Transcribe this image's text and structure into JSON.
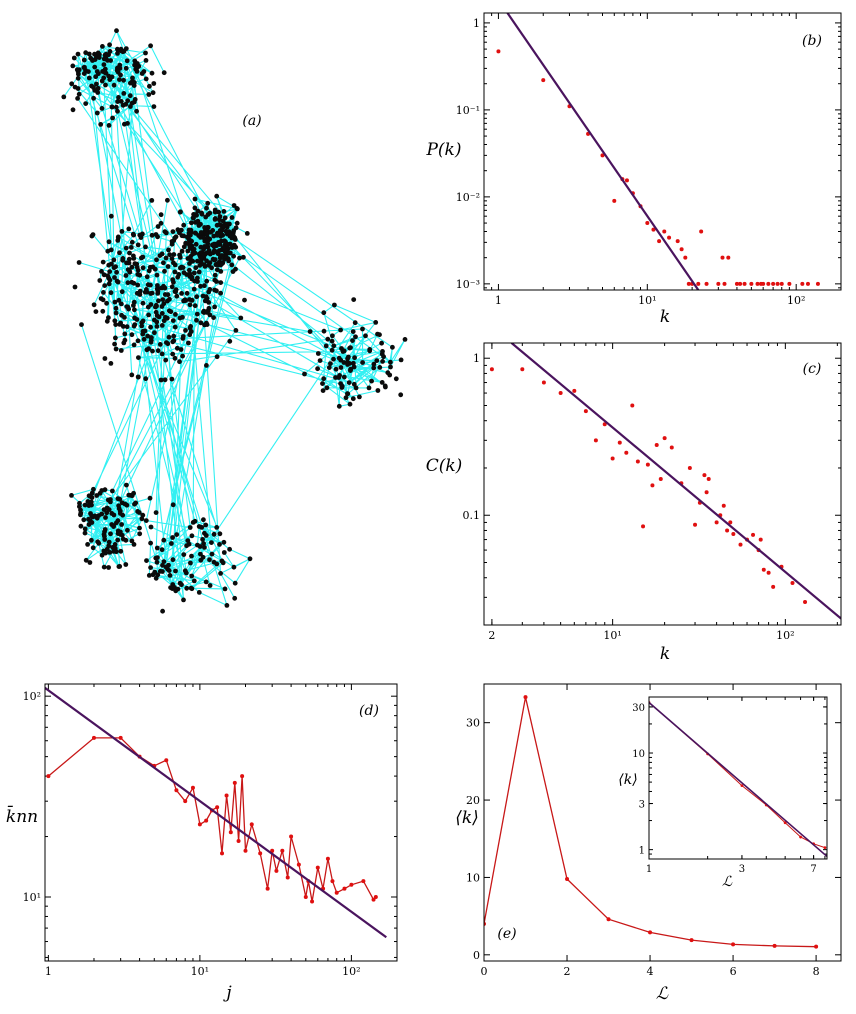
{
  "network_panel": {
    "label": "(a)",
    "edge_color": "#33f0f2",
    "node_color": "#0b0b0b",
    "modules": [
      {
        "nodes": 130
      },
      {
        "nodes": 320
      },
      {
        "nodes": 90
      },
      {
        "nodes": 110
      },
      {
        "nodes": 90
      },
      {
        "nodes": 200
      }
    ]
  },
  "colors": {
    "data": "#e01010",
    "fit_line": "#4a145e",
    "connector": "#c81818"
  },
  "chart_data": [
    {
      "id": "b",
      "label": "(b)",
      "type": "scatter",
      "xlabel": "k",
      "ylabel": "P(k)",
      "xscale": "log",
      "yscale": "log",
      "xlim": [
        0.8,
        200
      ],
      "ylim": [
        0.00085,
        1.3
      ],
      "xticks": [
        1,
        10,
        100
      ],
      "xticklabels": [
        "1",
        "10¹",
        "10²"
      ],
      "yticks": [
        1,
        0.1,
        0.01,
        0.001
      ],
      "yticklabels": [
        "1",
        "10⁻¹",
        "10⁻²",
        "10⁻³"
      ],
      "grid": false,
      "series": [
        {
          "style": "points",
          "x": [
            1,
            2,
            3,
            4,
            5,
            6,
            6.8,
            7.3,
            8,
            9,
            10,
            11,
            12,
            13,
            14,
            16,
            17,
            18,
            19,
            20,
            22,
            23,
            25,
            30,
            32,
            33,
            35,
            40,
            42,
            45,
            50,
            55,
            58,
            60,
            65,
            70,
            75,
            80,
            90,
            110,
            120,
            140
          ],
          "y": [
            0.47,
            0.22,
            0.11,
            0.053,
            0.03,
            0.009,
            0.016,
            0.0155,
            0.011,
            0.0078,
            0.005,
            0.0042,
            0.0031,
            0.004,
            0.0034,
            0.0031,
            0.0025,
            0.002,
            0.001,
            0.001,
            0.001,
            0.004,
            0.001,
            0.001,
            0.002,
            0.001,
            0.002,
            0.001,
            0.001,
            0.001,
            0.001,
            0.001,
            0.001,
            0.001,
            0.001,
            0.001,
            0.001,
            0.001,
            0.001,
            0.001,
            0.001,
            0.001
          ]
        },
        {
          "style": "line",
          "x": [
            1.15,
            22
          ],
          "y": [
            1.3,
            0.00085
          ]
        }
      ]
    },
    {
      "id": "c",
      "label": "(c)",
      "type": "scatter",
      "xlabel": "k",
      "ylabel": "C(k)",
      "xscale": "log",
      "yscale": "log",
      "xlim": [
        1.8,
        210
      ],
      "ylim": [
        0.02,
        1.25
      ],
      "xticks": [
        2,
        10,
        100
      ],
      "xticklabels": [
        "2",
        "10¹",
        "10²"
      ],
      "yticks": [
        1,
        0.1
      ],
      "yticklabels": [
        "1",
        "0.1"
      ],
      "grid": false,
      "series": [
        {
          "style": "points",
          "x": [
            2,
            3,
            4,
            5,
            6,
            7,
            8,
            9,
            10,
            11,
            12,
            13,
            14,
            15,
            16,
            17,
            18,
            19,
            20,
            22,
            25,
            28,
            30,
            32,
            34,
            35,
            36,
            40,
            42,
            44,
            46,
            48,
            50,
            55,
            60,
            65,
            70,
            72,
            75,
            80,
            85,
            95,
            110,
            130
          ],
          "y": [
            0.85,
            0.85,
            0.7,
            0.6,
            0.62,
            0.46,
            0.3,
            0.38,
            0.23,
            0.29,
            0.25,
            0.5,
            0.22,
            0.085,
            0.21,
            0.155,
            0.28,
            0.17,
            0.31,
            0.27,
            0.16,
            0.2,
            0.087,
            0.12,
            0.18,
            0.14,
            0.17,
            0.09,
            0.1,
            0.115,
            0.08,
            0.09,
            0.076,
            0.065,
            0.07,
            0.075,
            0.06,
            0.07,
            0.045,
            0.043,
            0.035,
            0.047,
            0.037,
            0.028
          ]
        },
        {
          "style": "line",
          "x": [
            2.6,
            210
          ],
          "y": [
            1.25,
            0.022
          ]
        }
      ]
    },
    {
      "id": "d",
      "label": "(d)",
      "type": "line",
      "xlabel": "j",
      "ylabel": "k̄nn",
      "xscale": "log",
      "yscale": "log",
      "xlim": [
        0.95,
        200
      ],
      "ylim": [
        4.8,
        115
      ],
      "xticks": [
        1,
        10,
        100
      ],
      "xticklabels": [
        "1",
        "10¹",
        "10²"
      ],
      "yticks": [
        10,
        100
      ],
      "yticklabels": [
        "10¹",
        "10²"
      ],
      "grid": false,
      "series": [
        {
          "style": "connected",
          "x": [
            1,
            2,
            3,
            4,
            5,
            6,
            7,
            8,
            9,
            10,
            11,
            12,
            13,
            14,
            15,
            16,
            17,
            18,
            19,
            20,
            22,
            25,
            28,
            30,
            32,
            35,
            38,
            40,
            45,
            50,
            52,
            55,
            60,
            65,
            70,
            75,
            80,
            90,
            100,
            120,
            140,
            145
          ],
          "y": [
            40,
            62,
            62,
            50,
            45,
            48,
            34,
            30,
            35,
            23,
            24,
            27,
            28,
            16.5,
            32,
            21,
            37,
            19,
            40,
            17,
            23,
            16.5,
            11,
            17,
            13.5,
            17,
            12.5,
            20,
            14.5,
            10,
            12,
            9.5,
            14,
            11,
            15.5,
            12,
            10.5,
            11,
            11.5,
            12,
            9.7,
            10
          ]
        },
        {
          "style": "line",
          "x": [
            0.95,
            170
          ],
          "y": [
            110,
            6.3
          ]
        }
      ]
    },
    {
      "id": "e",
      "label": "(e)",
      "type": "line",
      "xlabel": "ℒ",
      "ylabel": "⟨k⟩",
      "xscale": "linear",
      "yscale": "linear",
      "xlim": [
        0,
        8.6
      ],
      "ylim": [
        -0.8,
        35
      ],
      "xticks": [
        0,
        2,
        4,
        6,
        8
      ],
      "xticklabels": [
        "0",
        "2",
        "4",
        "6",
        "8"
      ],
      "yticks": [
        0,
        10,
        20,
        30
      ],
      "yticklabels": [
        "0",
        "10",
        "20",
        "30"
      ],
      "grid": false,
      "series": [
        {
          "style": "connected",
          "x": [
            0,
            1,
            2,
            3,
            4,
            5,
            6,
            7,
            8
          ],
          "y": [
            4,
            33.3,
            9.8,
            4.6,
            2.9,
            1.9,
            1.35,
            1.15,
            1.05
          ]
        }
      ],
      "inset": {
        "xlabel": "ℒ",
        "ylabel": "⟨k⟩",
        "xscale": "log",
        "yscale": "log",
        "xlim": [
          1,
          8.2
        ],
        "ylim": [
          0.8,
          38
        ],
        "xticks": [
          1,
          3,
          7
        ],
        "xticklabels": [
          "1",
          "3",
          "7"
        ],
        "yticks": [
          1,
          3,
          10,
          30
        ],
        "yticklabels": [
          "1",
          "3",
          "10",
          "30"
        ],
        "series": [
          {
            "style": "connected",
            "x": [
              1,
              2,
              3,
              4,
              5,
              6,
              7,
              8
            ],
            "y": [
              33.3,
              9.8,
              4.6,
              2.9,
              1.9,
              1.35,
              1.15,
              1.05
            ]
          },
          {
            "style": "line",
            "x": [
              1,
              8.2
            ],
            "y": [
              33.3,
              0.85
            ]
          }
        ]
      }
    }
  ]
}
